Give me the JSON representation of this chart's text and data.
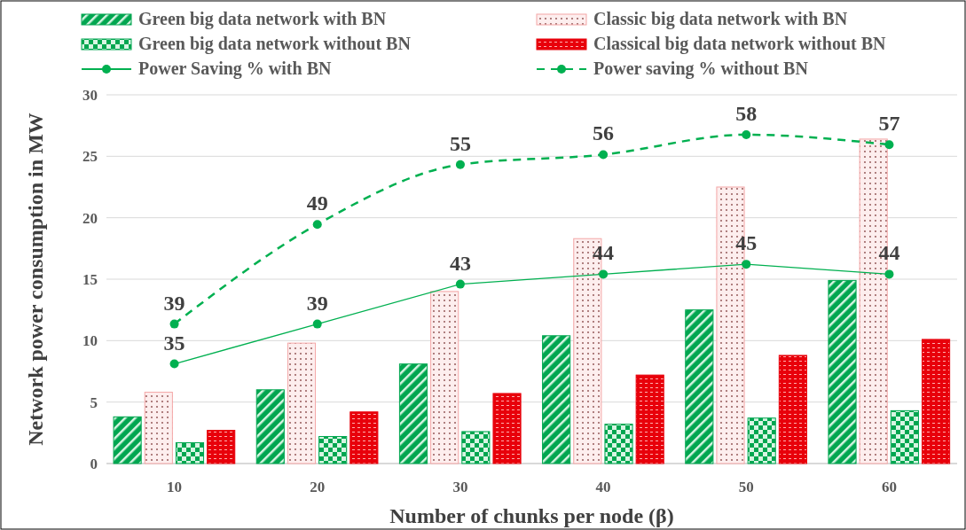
{
  "chart_data": {
    "type": "bar",
    "xlabel": "Number of chunks per node (β)",
    "ylabel": "Network power consumption in MW",
    "categories": [
      "10",
      "20",
      "30",
      "40",
      "50",
      "60"
    ],
    "ylim": [
      0,
      30
    ],
    "yticks": [
      0,
      5,
      10,
      15,
      20,
      25,
      30
    ],
    "y2lim": [
      25,
      62
    ],
    "tick_labels": "xy",
    "grid": "y",
    "legend": "top",
    "series": [
      {
        "name": "Green big data network with BN",
        "color": "#00a650",
        "values": [
          3.8,
          6.0,
          8.1,
          10.4,
          12.5,
          14.9
        ]
      },
      {
        "name": "Classic big data network with BN",
        "color": "#f4a6a6",
        "values": [
          5.8,
          9.8,
          14.0,
          18.3,
          22.5,
          26.4
        ]
      },
      {
        "name": "Green big data network without BN",
        "color": "#00a650",
        "values": [
          1.7,
          2.2,
          2.6,
          3.2,
          3.7,
          4.3
        ]
      },
      {
        "name": "Classical big data network without BN",
        "color": "#e8000b",
        "values": [
          2.7,
          4.2,
          5.7,
          7.2,
          8.8,
          10.1
        ]
      },
      {
        "name": "Power Saving % with BN",
        "type": "line",
        "axis": "y2",
        "color": "#00b050",
        "marker": "circle",
        "line_style": "solid",
        "values": [
          35,
          39,
          43,
          44,
          45,
          44
        ],
        "value_labels": [
          "35",
          "39",
          "43",
          "44",
          "45",
          "44"
        ]
      },
      {
        "name": "Power saving % without BN",
        "type": "line",
        "axis": "y2",
        "color": "#00b050",
        "marker": "circle",
        "line_style": "dashed",
        "values": [
          39,
          49,
          55,
          56,
          58,
          57
        ],
        "value_labels": [
          "39",
          "49",
          "55",
          "56",
          "58",
          "57"
        ]
      }
    ]
  }
}
